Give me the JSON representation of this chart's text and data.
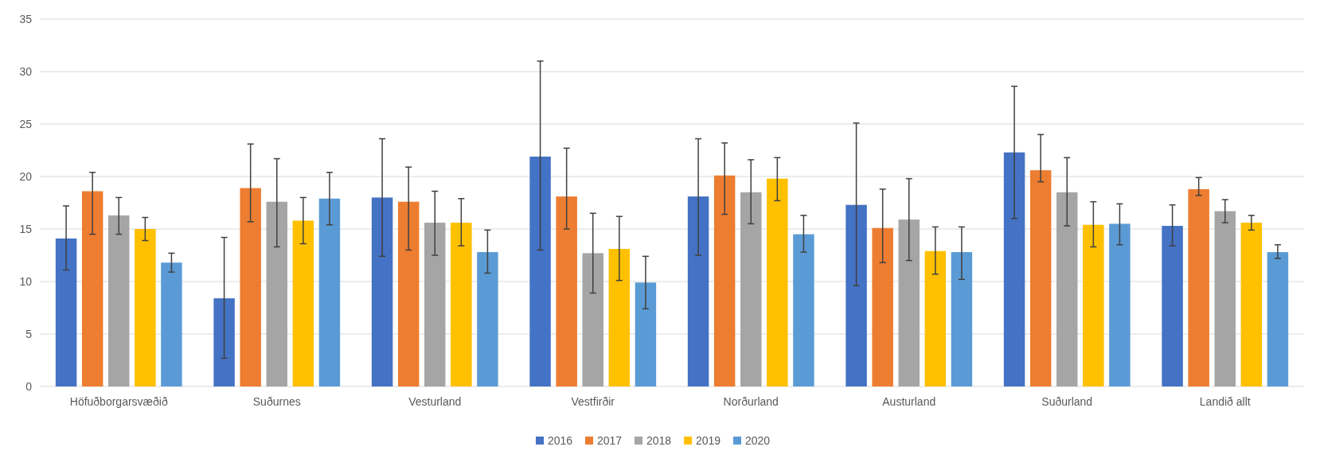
{
  "chart_data": {
    "type": "bar",
    "categories": [
      "Höfuðborgarsvæðið",
      "Suðurnes",
      "Vesturland",
      "Vestfirðir",
      "Norðurland",
      "Austurland",
      "Suðurland",
      "Landið allt"
    ],
    "series": [
      {
        "name": "2016",
        "color": "#4472c4",
        "values": [
          14.1,
          8.4,
          18.0,
          21.9,
          18.1,
          17.3,
          22.3,
          15.3
        ],
        "errors": [
          [
            11.1,
            17.2
          ],
          [
            2.7,
            14.2
          ],
          [
            12.4,
            23.6
          ],
          [
            13.0,
            31.0
          ],
          [
            12.5,
            23.6
          ],
          [
            9.6,
            25.1
          ],
          [
            16.0,
            28.6
          ],
          [
            13.4,
            17.3
          ]
        ]
      },
      {
        "name": "2017",
        "color": "#ed7d31",
        "values": [
          18.6,
          18.9,
          17.6,
          18.1,
          20.1,
          15.1,
          20.6,
          18.8
        ],
        "errors": [
          [
            14.5,
            20.4
          ],
          [
            15.7,
            23.1
          ],
          [
            13.0,
            20.9
          ],
          [
            15.0,
            22.7
          ],
          [
            16.4,
            23.2
          ],
          [
            11.8,
            18.8
          ],
          [
            19.5,
            24.0
          ],
          [
            18.2,
            19.9
          ]
        ]
      },
      {
        "name": "2018",
        "color": "#a5a5a5",
        "values": [
          16.3,
          17.6,
          15.6,
          12.7,
          18.5,
          15.9,
          18.5,
          16.7
        ],
        "errors": [
          [
            14.5,
            18.0
          ],
          [
            13.3,
            21.7
          ],
          [
            12.5,
            18.6
          ],
          [
            8.9,
            16.5
          ],
          [
            15.5,
            21.6
          ],
          [
            12.0,
            19.8
          ],
          [
            15.3,
            21.8
          ],
          [
            15.6,
            17.8
          ]
        ]
      },
      {
        "name": "2019",
        "color": "#ffc000",
        "values": [
          15.0,
          15.8,
          15.6,
          13.1,
          19.8,
          12.9,
          15.4,
          15.6
        ],
        "errors": [
          [
            13.9,
            16.1
          ],
          [
            13.6,
            18.0
          ],
          [
            13.4,
            17.9
          ],
          [
            10.1,
            16.2
          ],
          [
            17.7,
            21.8
          ],
          [
            10.7,
            15.2
          ],
          [
            13.3,
            17.6
          ],
          [
            14.9,
            16.3
          ]
        ]
      },
      {
        "name": "2020",
        "color": "#5b9bd5",
        "values": [
          11.8,
          17.9,
          12.8,
          9.9,
          14.5,
          12.8,
          15.5,
          12.8
        ],
        "errors": [
          [
            10.9,
            12.7
          ],
          [
            15.4,
            20.4
          ],
          [
            10.8,
            14.9
          ],
          [
            7.4,
            12.4
          ],
          [
            12.8,
            16.3
          ],
          [
            10.2,
            15.2
          ],
          [
            13.5,
            17.4
          ],
          [
            12.2,
            13.5
          ]
        ]
      }
    ],
    "ylim": [
      0,
      35
    ],
    "yticks": [
      0,
      5,
      10,
      15,
      20,
      25,
      30,
      35
    ],
    "grid": "y",
    "legend": "bottom"
  }
}
